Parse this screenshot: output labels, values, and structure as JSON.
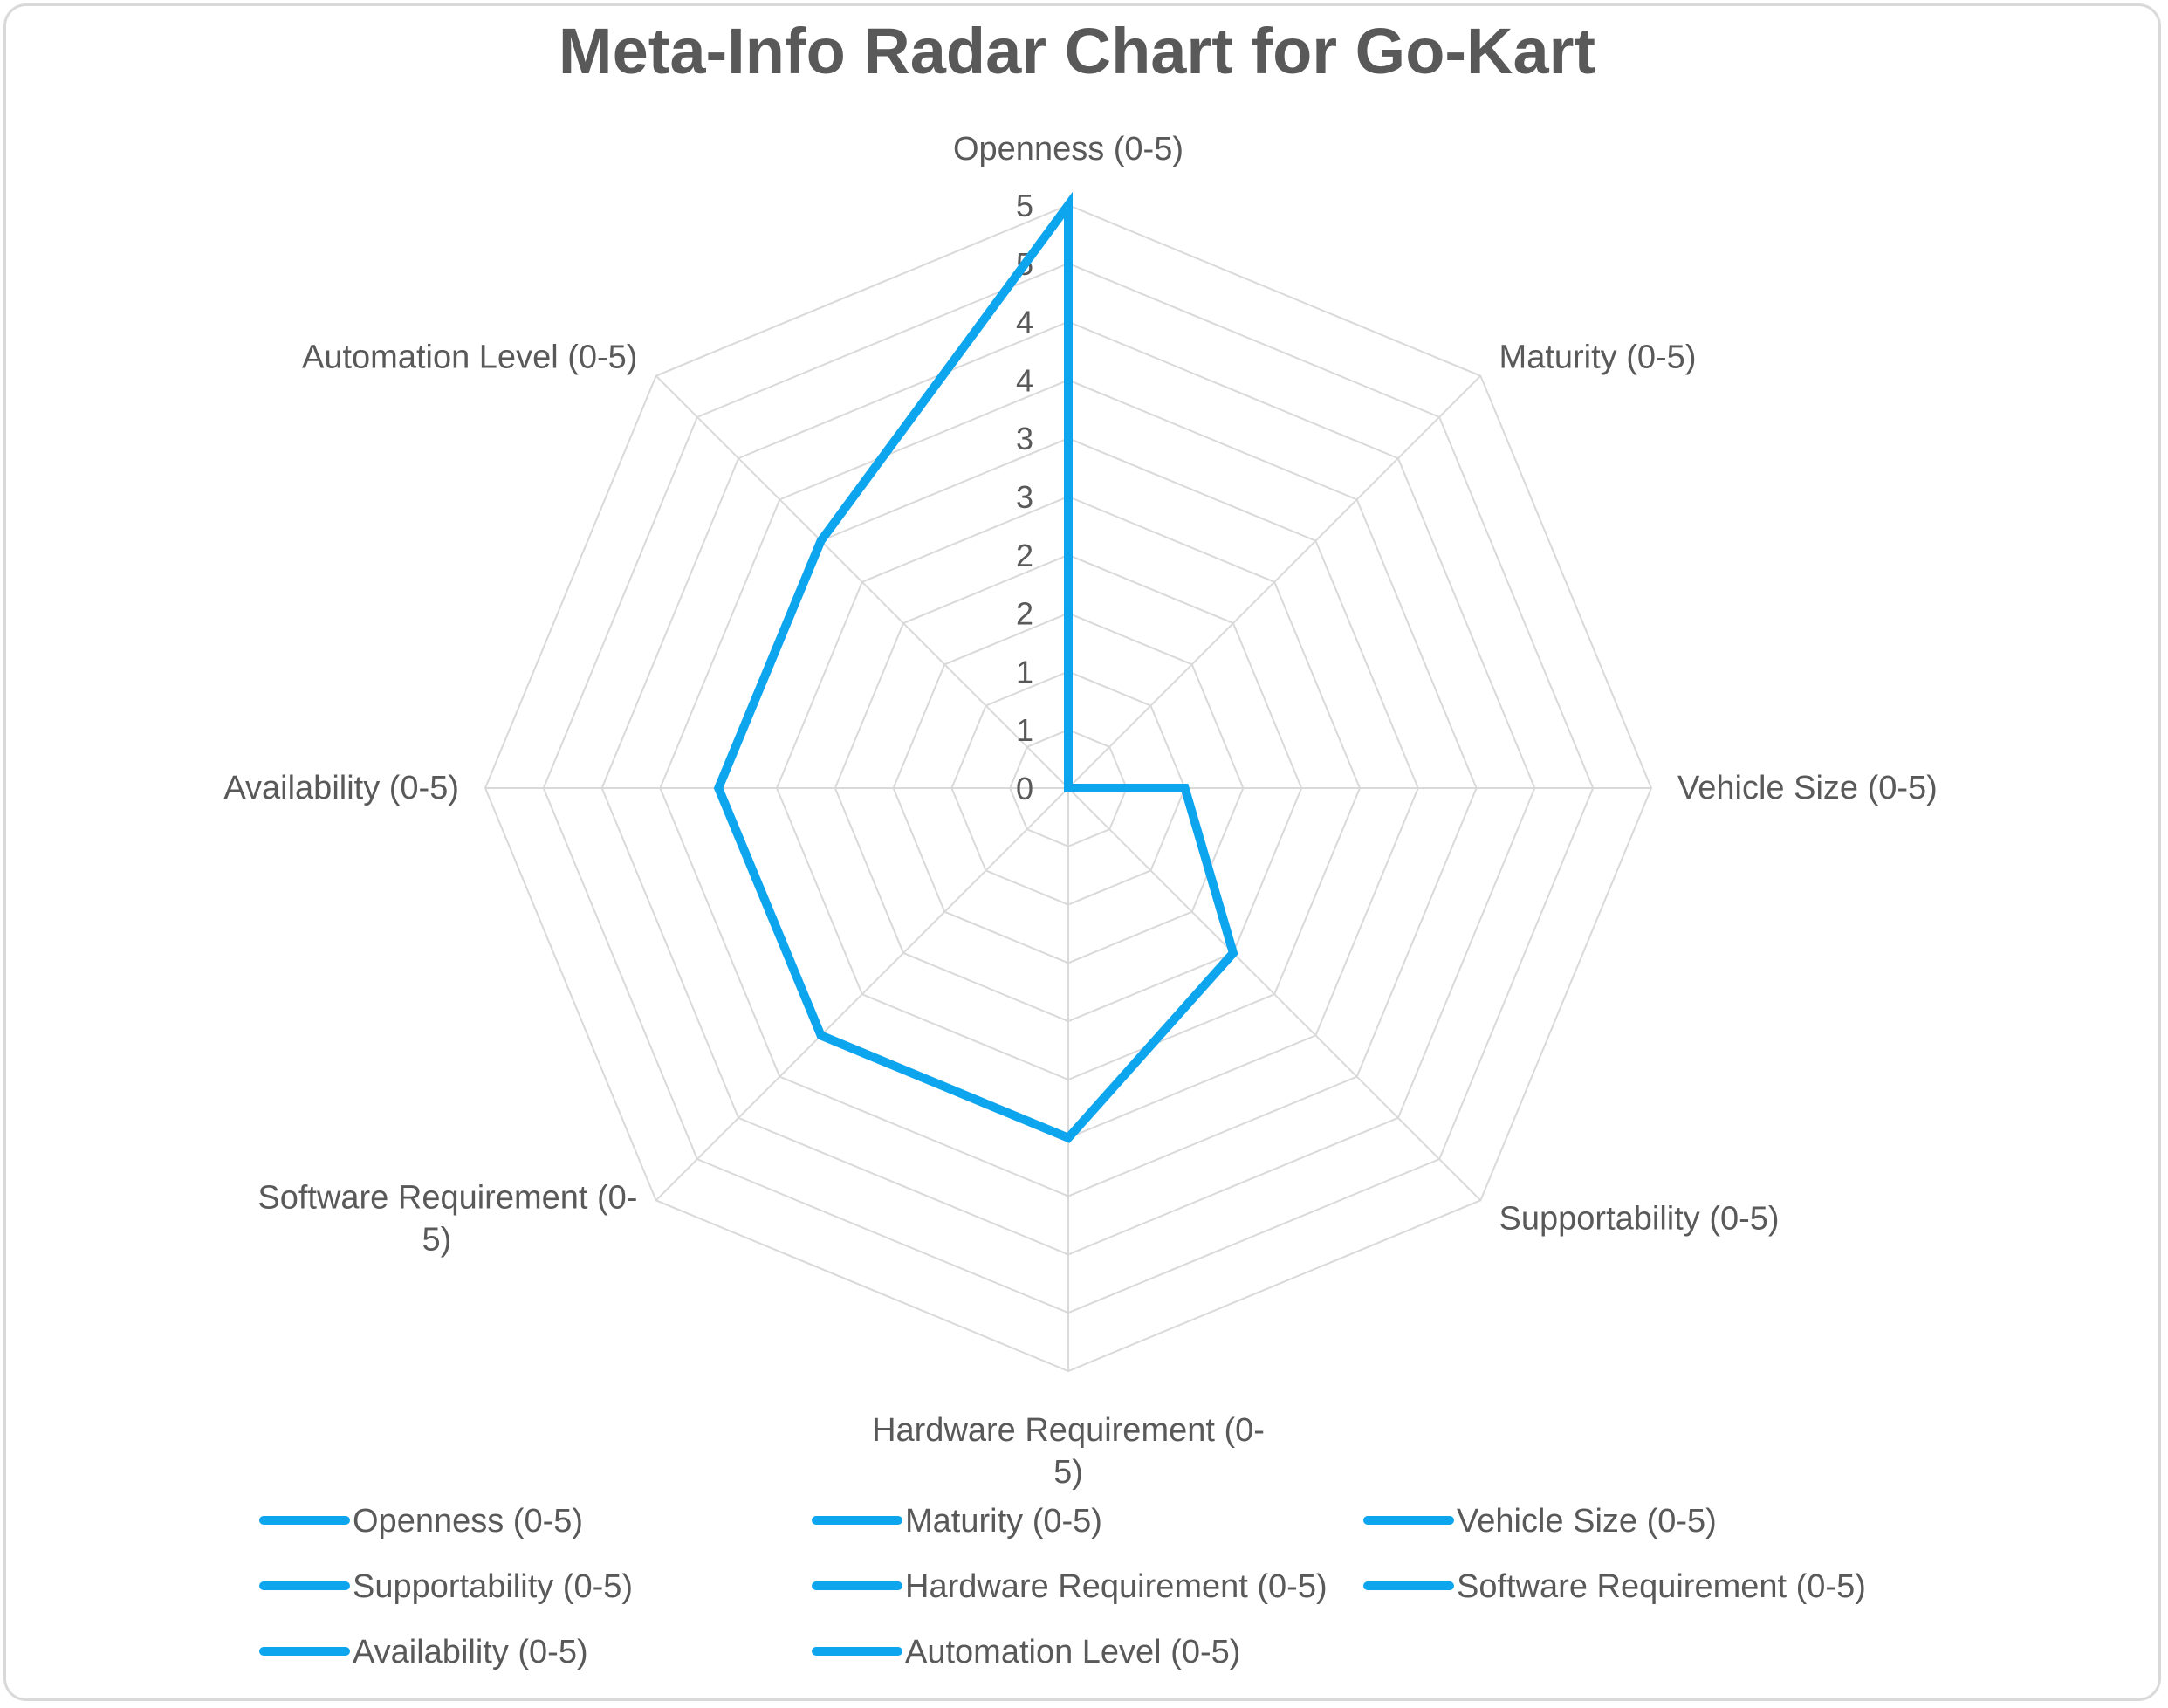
{
  "chart_data": {
    "type": "radar",
    "title": "Meta-Info Radar Chart for Go-Kart",
    "axes": [
      "Openness (0-5)",
      "Maturity (0-5)",
      "Vehicle Size (0-5)",
      "Supportability (0-5)",
      "Hardware Requirement (0-5)",
      "Software Requirement (0-5)",
      "Availability (0-5)",
      "Automation Level (0-5)"
    ],
    "radial_range": [
      0,
      5
    ],
    "tick_labels": [
      "0",
      "1",
      "1",
      "2",
      "2",
      "3",
      "3",
      "4",
      "4",
      "5",
      "5"
    ],
    "grid": true,
    "series": [
      {
        "values": [
          5,
          0,
          1,
          2,
          3,
          3,
          3,
          3
        ],
        "color": "#0ea5ef"
      }
    ],
    "legend_placement": "bottom",
    "legend_entries": [
      "Openness (0-5)",
      "Maturity (0-5)",
      "Vehicle Size (0-5)",
      "Supportability (0-5)",
      "Hardware Requirement (0-5)",
      "Software Requirement (0-5)",
      "Availability (0-5)",
      "Automation Level (0-5)"
    ],
    "legend_color": "#0ea5ef",
    "grid_color": "#d9d9d9"
  }
}
